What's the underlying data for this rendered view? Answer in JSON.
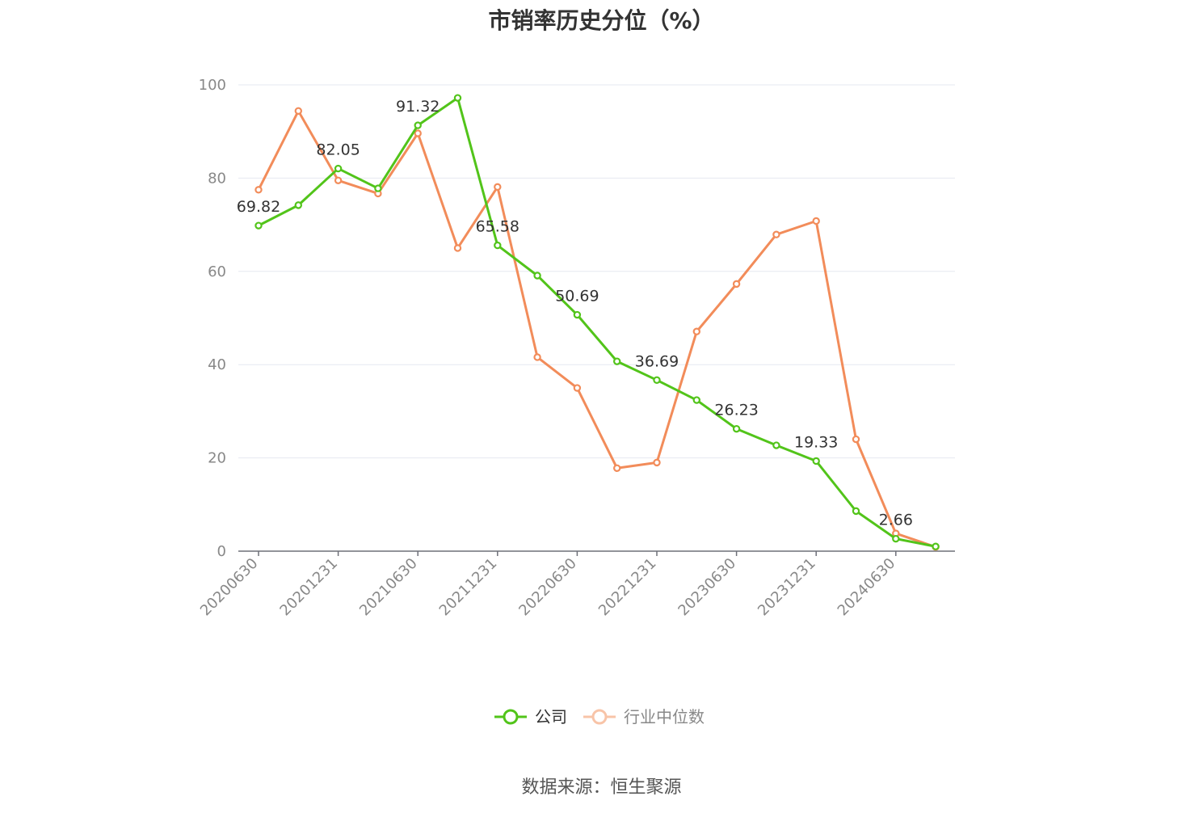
{
  "chart_data": {
    "type": "line",
    "title": "市销率历史分位（%）",
    "x": [
      "20200630",
      "20200930",
      "20201231",
      "20210331",
      "20210630",
      "20210930",
      "20211231",
      "20220331",
      "20220630",
      "20220930",
      "20221231",
      "20230331",
      "20230630",
      "20230930",
      "20231231",
      "20240331",
      "20240630",
      "20240930"
    ],
    "x_tick_labels": [
      "20200630",
      "20201231",
      "20210630",
      "20211231",
      "20220630",
      "20221231",
      "20230630",
      "20231231",
      "20240630"
    ],
    "ylim": [
      0,
      100
    ],
    "y_ticks": [
      0,
      20,
      40,
      60,
      80,
      100
    ],
    "grid": true,
    "legend_position": "bottom",
    "series": [
      {
        "name": "公司",
        "color": "#52c41a",
        "values": [
          69.82,
          74.2,
          82.05,
          77.8,
          91.32,
          97.2,
          65.58,
          59.1,
          50.69,
          40.7,
          36.69,
          32.4,
          26.23,
          22.7,
          19.33,
          8.6,
          2.66,
          1.0
        ],
        "data_labels": {
          "0": "69.82",
          "2": "82.05",
          "4": "91.32",
          "6": "65.58",
          "8": "50.69",
          "10": "36.69",
          "12": "26.23",
          "14": "19.33",
          "16": "2.66"
        }
      },
      {
        "name": "行业中位数",
        "color": "#f28c5a",
        "values": [
          77.5,
          94.4,
          79.5,
          76.7,
          89.6,
          65.0,
          78.1,
          41.6,
          35.0,
          17.8,
          19.0,
          47.1,
          57.3,
          67.9,
          70.8,
          24.0,
          3.8,
          0.9
        ]
      }
    ]
  },
  "source": "数据来源：恒生聚源"
}
